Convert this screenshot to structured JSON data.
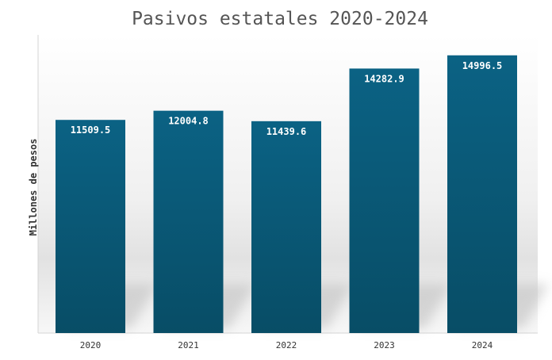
{
  "chart_data": {
    "type": "bar",
    "title": "Pasivos estatales 2020-2024",
    "xlabel": "",
    "ylabel": "Millones de pesos",
    "categories": [
      "2020",
      "2021",
      "2022",
      "2023",
      "2024"
    ],
    "values": [
      11509.5,
      12004.8,
      11439.6,
      14282.9,
      14996.5
    ],
    "value_labels": [
      "11509.5",
      "12004.8",
      "11439.6",
      "14282.9",
      "14996.5"
    ],
    "ylim": [
      0,
      16100
    ],
    "grid": false,
    "legend": "none",
    "colors": {
      "bar_top": "#0b6284",
      "bar_bottom": "#084d66",
      "title": "#555555",
      "axis_text": "#333333",
      "value_text": "#ffffff"
    }
  }
}
